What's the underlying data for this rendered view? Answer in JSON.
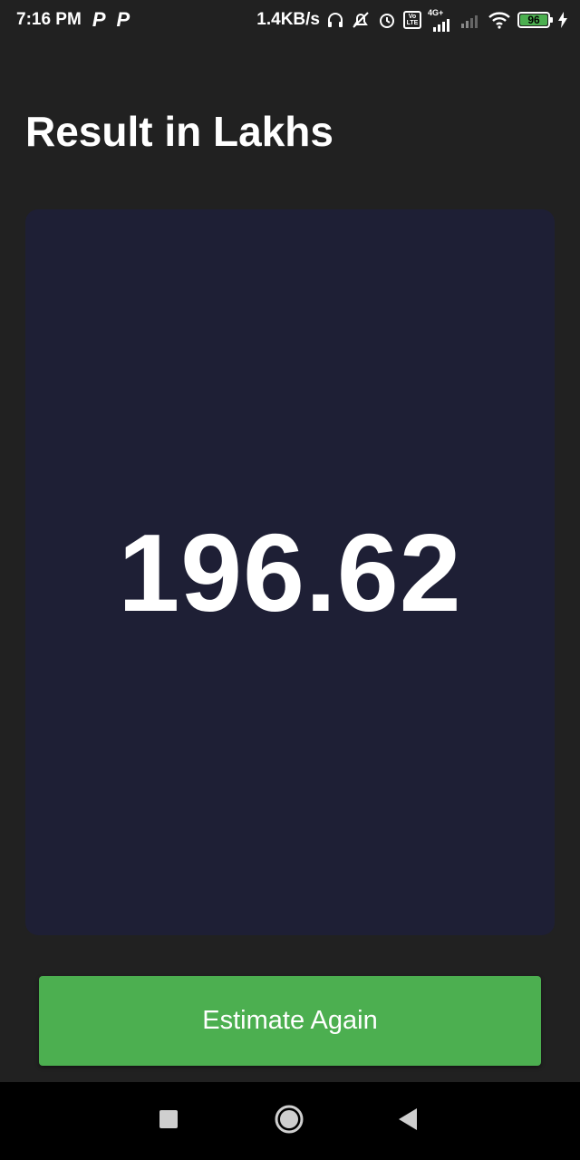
{
  "status_bar": {
    "time": "7:16 PM",
    "notif_icons": [
      "P",
      "P"
    ],
    "network_speed": "1.4KB/s",
    "network_type": "4G+",
    "volte_label_top": "Vo",
    "volte_label_bottom": "LTE",
    "battery_level": "96",
    "icons": [
      "headset-icon",
      "bell-off-icon",
      "alarm-icon",
      "volte-icon",
      "signal-icon",
      "signal-weak-icon",
      "wifi-icon",
      "battery-icon",
      "charging-icon"
    ]
  },
  "page": {
    "title": "Result in Lakhs"
  },
  "result": {
    "value": "196.62"
  },
  "actions": {
    "estimate_again_label": "Estimate Again"
  },
  "colors": {
    "background": "#212121",
    "card": "#1e1f35",
    "button": "#4caf50",
    "nav_bar": "#000000"
  },
  "nav_bar": {
    "icons": [
      "recents-icon",
      "home-icon",
      "back-icon"
    ]
  }
}
